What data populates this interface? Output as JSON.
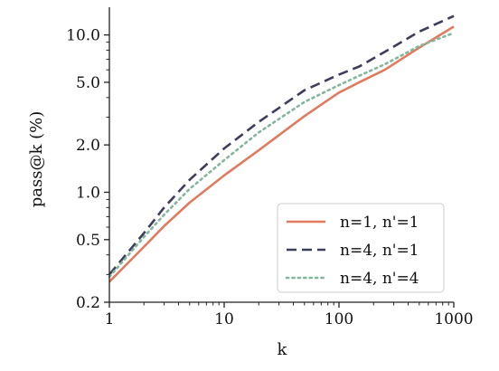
{
  "chart_data": {
    "type": "line",
    "xlabel": "k",
    "ylabel": "pass@k (%)",
    "xscale": "log",
    "yscale": "log",
    "xlim": [
      1,
      1000
    ],
    "ylim": [
      0.2,
      15
    ],
    "xticks": [
      {
        "value": 1,
        "label": "1"
      },
      {
        "value": 10,
        "label": "10"
      },
      {
        "value": 100,
        "label": "100"
      },
      {
        "value": 1000,
        "label": "1000"
      }
    ],
    "yticks": [
      {
        "value": 0.2,
        "label": "0.2"
      },
      {
        "value": 0.5,
        "label": "0.5"
      },
      {
        "value": 1.0,
        "label": "1.0"
      },
      {
        "value": 2.0,
        "label": "2.0"
      },
      {
        "value": 5.0,
        "label": "5.0"
      },
      {
        "value": 10.0,
        "label": "10.0"
      }
    ],
    "grid": false,
    "legend_position": "lower-right",
    "x": [
      1,
      2,
      3,
      5,
      10,
      20,
      50,
      100,
      150,
      250,
      500,
      1000
    ],
    "series": [
      {
        "name": "n=1, n'=1",
        "color": "#e07b5f",
        "dash": "solid",
        "values": [
          0.27,
          0.45,
          0.61,
          0.86,
          1.28,
          1.85,
          3.05,
          4.3,
          5.0,
          6.0,
          8.3,
          11.3
        ]
      },
      {
        "name": "n=4, n'=1",
        "color": "#3d3d5c",
        "dash": "dashed",
        "values": [
          0.3,
          0.55,
          0.8,
          1.2,
          1.9,
          2.8,
          4.45,
          5.6,
          6.3,
          7.8,
          10.5,
          13.2
        ]
      },
      {
        "name": "n=4, n'=4",
        "color": "#84b59d",
        "dash": "dotted",
        "values": [
          0.29,
          0.52,
          0.72,
          1.05,
          1.6,
          2.4,
          3.75,
          4.8,
          5.5,
          6.5,
          8.5,
          10.3
        ]
      }
    ]
  }
}
